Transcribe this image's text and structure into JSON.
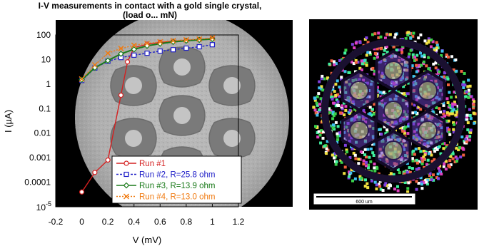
{
  "chart_data": {
    "type": "line",
    "title": "I-V measurements in contact with a gold single crystal,",
    "subtitle": "(load o... mN)",
    "xlabel": "V (mV)",
    "ylabel": "I (µA)",
    "xlim": [
      -0.2,
      1.2
    ],
    "ylim": [
      1e-05,
      100
    ],
    "yscale": "log",
    "grid": false,
    "legend_position": "bottom-right",
    "x_ticks": [
      "-0.2",
      "0",
      "0.2",
      "0.4",
      "0.6",
      "0.8",
      "1",
      "1.2"
    ],
    "y_ticks": [
      "100",
      "10",
      "1",
      "0.1",
      "0.01",
      "0.001",
      "0.0001"
    ],
    "y_tick_min_base": "10",
    "y_tick_min_exp": "-5",
    "series": [
      {
        "name": "Run #1",
        "color": "#d42020",
        "marker": "circle",
        "x": [
          0,
          0.1,
          0.2,
          0.3,
          0.35,
          0.4,
          0.5,
          0.6,
          0.7,
          0.8,
          0.9,
          1.0
        ],
        "y": [
          4e-05,
          0.00025,
          0.0008,
          0.35,
          8,
          30,
          42,
          50,
          55,
          60,
          65,
          72
        ]
      },
      {
        "name": "Run #2, R=25.8 ohm",
        "color": "#2020c8",
        "marker": "square",
        "x": [
          0,
          0.1,
          0.2,
          0.3,
          0.4,
          0.5,
          0.6,
          0.7,
          0.8,
          0.9,
          1.0
        ],
        "y": [
          1.4,
          4.5,
          8.5,
          12,
          15,
          18,
          22,
          25,
          29,
          33,
          40
        ]
      },
      {
        "name": "Run #3, R=13.9 ohm",
        "color": "#1a7a1a",
        "marker": "diamond",
        "x": [
          0,
          0.1,
          0.2,
          0.3,
          0.4,
          0.5,
          0.6,
          0.7,
          0.8,
          0.9,
          1.0
        ],
        "y": [
          1.5,
          4.6,
          9,
          17,
          26,
          36,
          44,
          52,
          58,
          63,
          68
        ]
      },
      {
        "name": "Run #4, R=13.0 ohm",
        "color": "#f07a10",
        "marker": "x",
        "x": [
          0,
          0.1,
          0.2,
          0.3,
          0.4,
          0.5,
          0.6,
          0.7,
          0.8,
          0.9,
          1.0
        ],
        "y": [
          1.6,
          6,
          18,
          28,
          38,
          45,
          52,
          58,
          63,
          68,
          75
        ]
      }
    ]
  },
  "micrograph": {
    "scale_bar_label": "600 um",
    "palette": [
      "#3ad04a",
      "#e040c0",
      "#f0e040",
      "#40c0f0",
      "#f06040",
      "#ffffff",
      "#8040e0",
      "#40f0a0"
    ]
  }
}
